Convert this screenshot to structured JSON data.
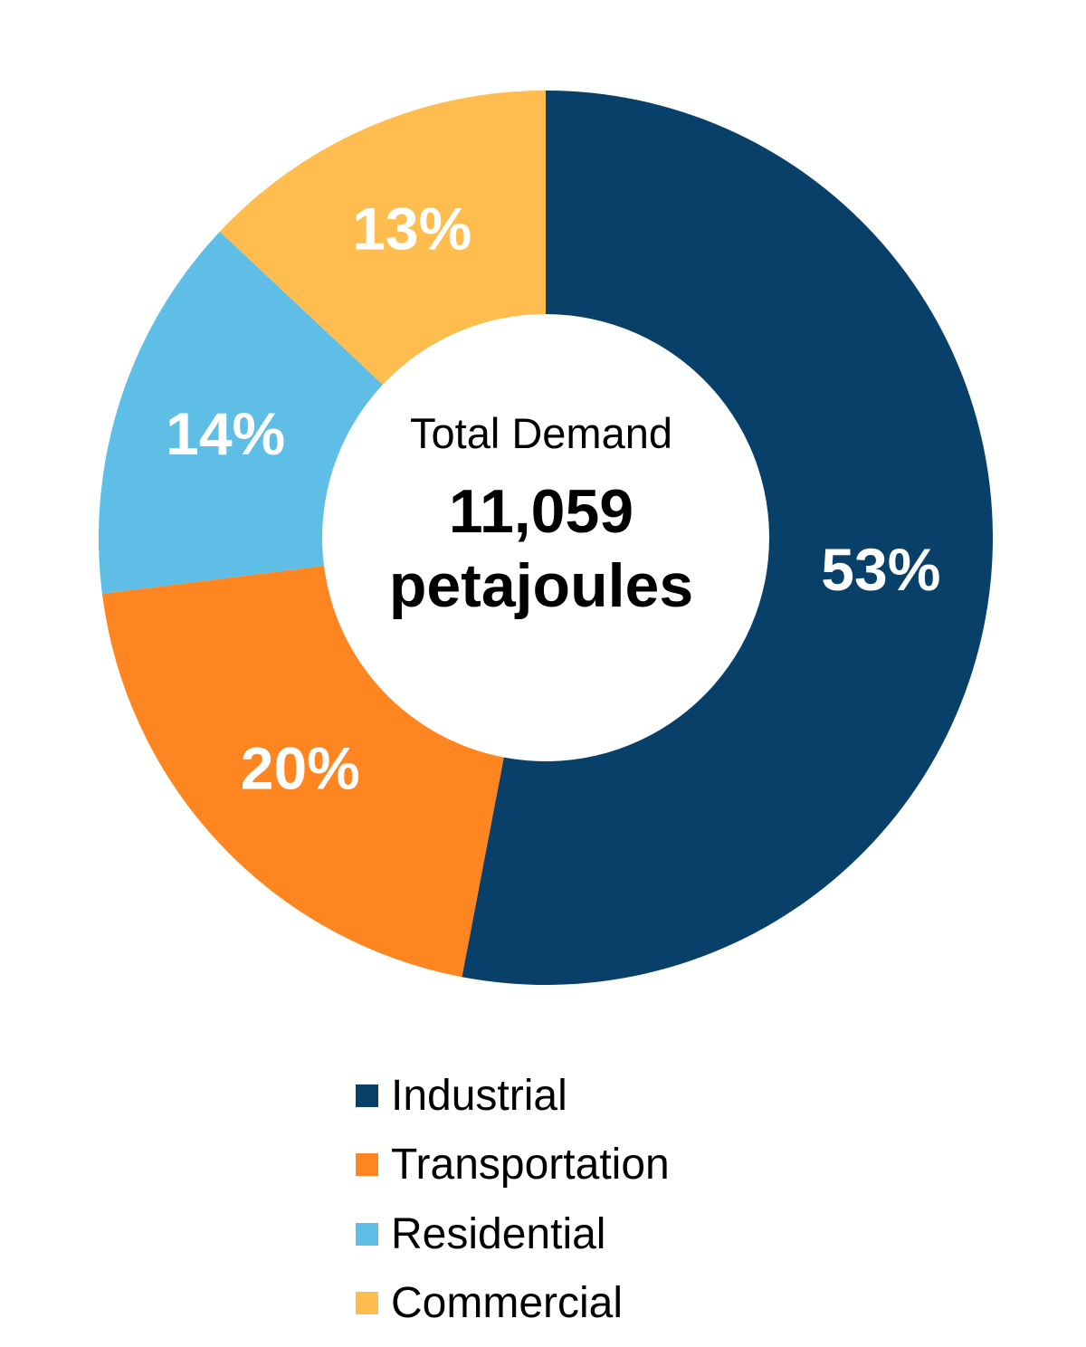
{
  "chart_data": {
    "type": "pie",
    "variant": "donut",
    "center_text": {
      "title": "Total Demand",
      "value": "11,059",
      "unit": "petajoules"
    },
    "categories": [
      "Industrial",
      "Transportation",
      "Residential",
      "Commercial"
    ],
    "values": [
      53,
      20,
      14,
      13
    ],
    "data_labels": [
      "53%",
      "20%",
      "14%",
      "13%"
    ],
    "colors": [
      "#08406A",
      "#FF8520",
      "#5EBEE6",
      "#FFBD50"
    ],
    "legend_position": "bottom",
    "start_angle": "12 o'clock, clockwise"
  }
}
